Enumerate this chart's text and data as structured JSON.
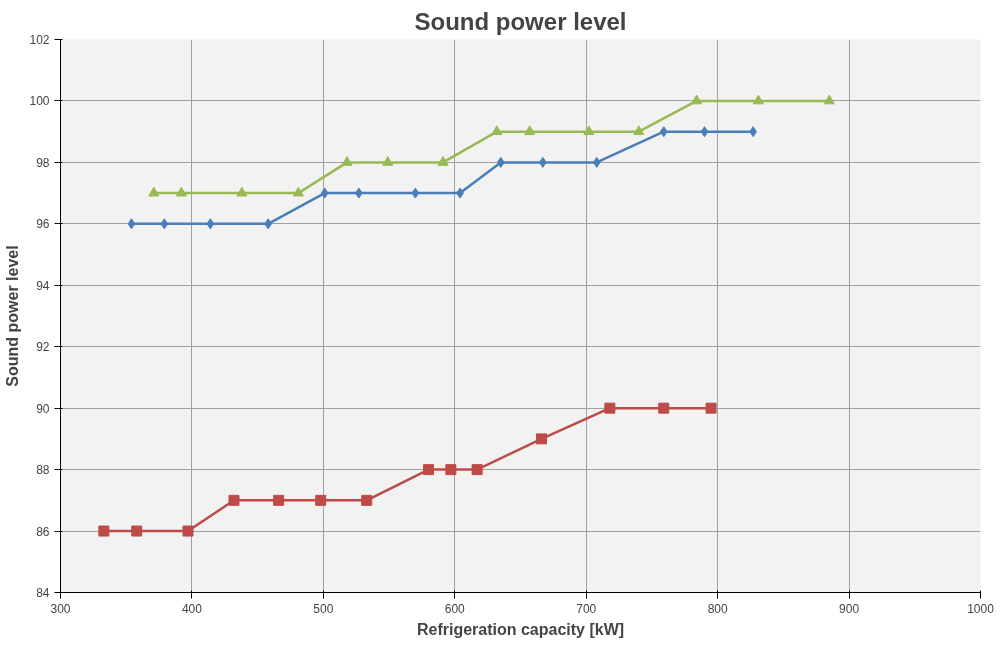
{
  "chart_data": {
    "type": "line",
    "title": "Sound power level",
    "xlabel": "Refrigeration capacity [kW]",
    "ylabel": "Sound power level",
    "xlim": [
      300,
      1000
    ],
    "xticks": [
      300,
      400,
      500,
      600,
      700,
      800,
      900,
      1000
    ],
    "ylim": [
      84,
      102
    ],
    "yticks": [
      84,
      86,
      88,
      90,
      92,
      94,
      96,
      98,
      100,
      102
    ],
    "grid": true,
    "line_style": "solid",
    "series": [
      {
        "color": "#4a7ebb",
        "marker": "diamond",
        "x": [
          354,
          379,
          414,
          458,
          501,
          527,
          570,
          604,
          635,
          667,
          708,
          759,
          790,
          827
        ],
        "values": [
          96,
          96,
          96,
          96,
          97,
          97,
          97,
          97,
          98,
          98,
          98,
          99,
          99,
          99
        ]
      },
      {
        "color": "#be4b48",
        "marker": "square",
        "x": [
          333,
          358,
          397,
          432,
          466,
          498,
          533,
          580,
          597,
          617,
          666,
          718,
          759,
          795
        ],
        "values": [
          86,
          86,
          86,
          87,
          87,
          87,
          87,
          88,
          88,
          88,
          89,
          90,
          90,
          90
        ]
      },
      {
        "color": "#98b954",
        "marker": "triangle",
        "x": [
          371,
          392,
          438,
          481,
          518,
          549,
          591,
          632,
          657,
          702,
          740,
          784,
          831,
          885
        ],
        "values": [
          97,
          97,
          97,
          97,
          98,
          98,
          98,
          99,
          99,
          99,
          99,
          100,
          100,
          100
        ]
      }
    ]
  }
}
